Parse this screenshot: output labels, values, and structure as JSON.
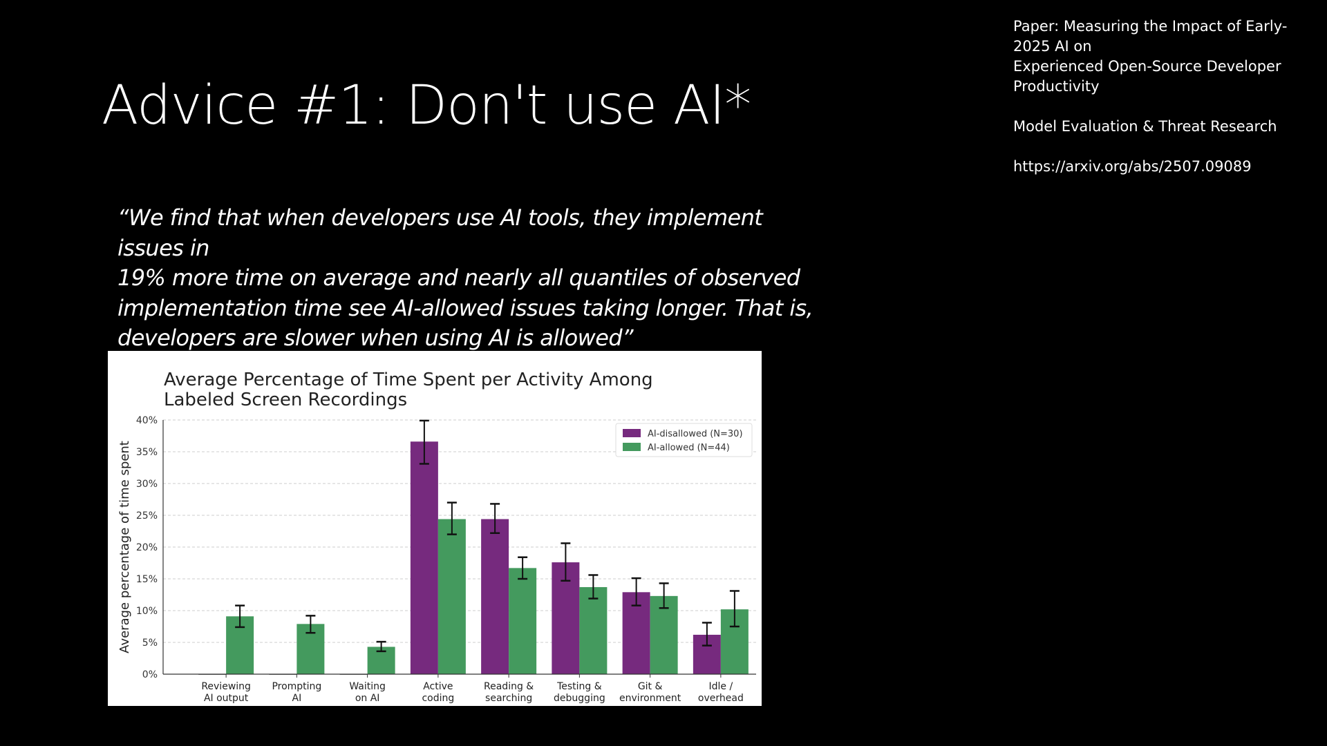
{
  "slide": {
    "title": "Advice #1: Don't use AI*",
    "reference": {
      "paper_line1": "Paper: Measuring the Impact of Early-",
      "paper_line2": "2025 AI on",
      "paper_line3": "Experienced Open-Source Developer",
      "paper_line4": "Productivity",
      "org": "Model Evaluation & Threat Research",
      "url": "https://arxiv.org/abs/2507.09089"
    },
    "quote_lines": [
      "“We find that when developers use AI tools, they implement issues in",
      "19% more time on average and nearly all quantiles of observed",
      "implementation time see AI-allowed issues taking longer. That is,",
      "developers are slower when using AI is allowed”"
    ]
  },
  "chart_data": {
    "type": "bar",
    "title_lines": [
      "Average Percentage of Time Spent per Activity Among",
      "Labeled Screen Recordings"
    ],
    "xlabel": "",
    "ylabel": "Average percentage of time spent",
    "ylim": [
      0,
      40
    ],
    "yticks": [
      0,
      5,
      10,
      15,
      20,
      25,
      30,
      35,
      40
    ],
    "ytick_labels": [
      "0%",
      "5%",
      "10%",
      "15%",
      "20%",
      "25%",
      "30%",
      "35%",
      "40%"
    ],
    "grid": true,
    "legend_position": "top-right",
    "categories": [
      [
        "Reviewing",
        "AI output"
      ],
      [
        "Prompting",
        "AI"
      ],
      [
        "Waiting",
        "on AI"
      ],
      [
        "Active",
        "coding"
      ],
      [
        "Reading &",
        "searching"
      ],
      [
        "Testing &",
        "debugging"
      ],
      [
        "Git &",
        "environment"
      ],
      [
        "Idle /",
        "overhead"
      ]
    ],
    "series": [
      {
        "name": "AI-disallowed (N=30)",
        "color": "#762a7e",
        "values": [
          0,
          0,
          0,
          36.6,
          24.4,
          17.6,
          12.9,
          6.2
        ],
        "err_low": [
          null,
          null,
          null,
          33.1,
          22.2,
          14.7,
          10.8,
          4.5
        ],
        "err_high": [
          null,
          null,
          null,
          39.9,
          26.8,
          20.6,
          15.1,
          8.1
        ]
      },
      {
        "name": "AI-allowed (N=44)",
        "color": "#449a5e",
        "values": [
          9.1,
          7.9,
          4.3,
          24.4,
          16.7,
          13.7,
          12.3,
          10.2
        ],
        "err_low": [
          7.4,
          6.5,
          3.6,
          22.0,
          15.0,
          11.9,
          10.4,
          7.5
        ],
        "err_high": [
          10.8,
          9.2,
          5.1,
          27.0,
          18.4,
          15.6,
          14.3,
          13.1
        ]
      }
    ]
  }
}
